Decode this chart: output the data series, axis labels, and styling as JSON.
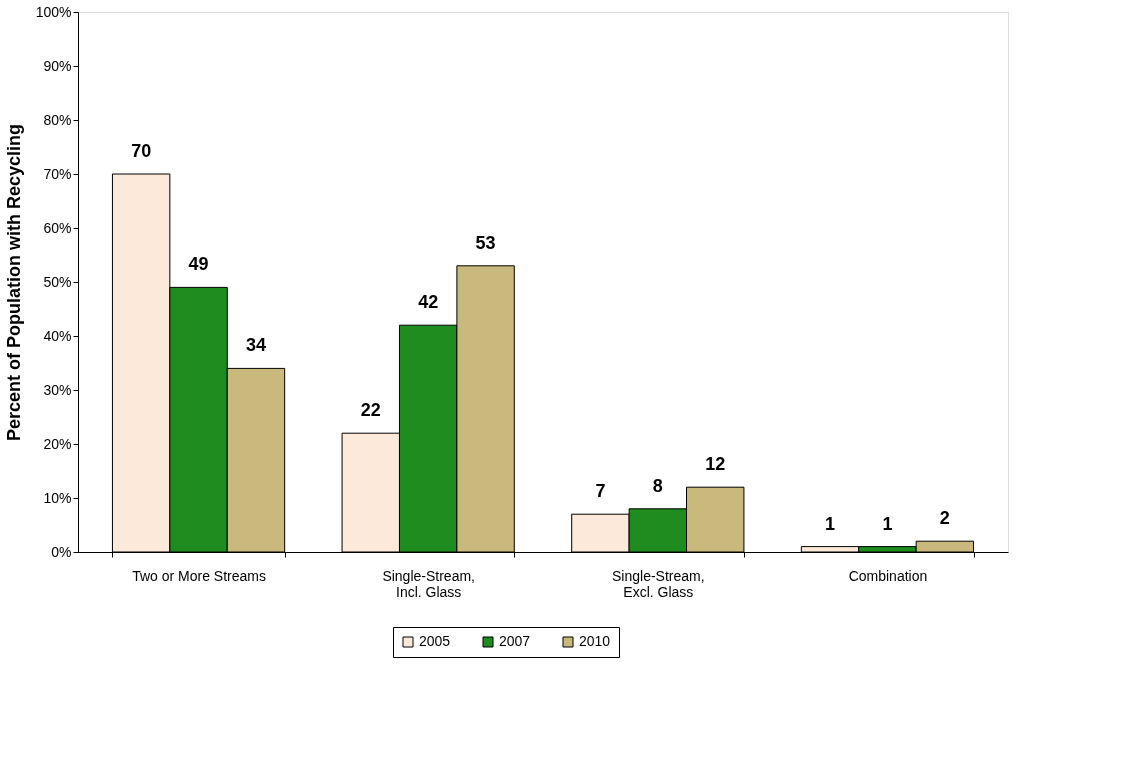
{
  "chart_data": {
    "type": "bar",
    "ylabel": "Percent of Population with Recycling",
    "categories": [
      "Two or More Streams",
      "Single-Stream,\nIncl. Glass",
      "Single-Stream,\nExcl. Glass",
      "Combination"
    ],
    "series": [
      {
        "name": "2005",
        "color": "#fde9d9",
        "values": [
          70,
          22,
          7,
          1
        ]
      },
      {
        "name": "2007",
        "color": "#1e8c1e",
        "values": [
          49,
          42,
          8,
          1
        ]
      },
      {
        "name": "2010",
        "color": "#c9b97c",
        "values": [
          34,
          53,
          12,
          2
        ]
      }
    ],
    "ylim": [
      0,
      100
    ],
    "yticks": [
      {
        "value": 0,
        "label": "0%"
      },
      {
        "value": 10,
        "label": "10%"
      },
      {
        "value": 20,
        "label": "20%"
      },
      {
        "value": 30,
        "label": "30%"
      },
      {
        "value": 40,
        "label": "40%"
      },
      {
        "value": 50,
        "label": "50%"
      },
      {
        "value": 60,
        "label": "60%"
      },
      {
        "value": 70,
        "label": "70%"
      },
      {
        "value": 80,
        "label": "80%"
      },
      {
        "value": 90,
        "label": "90%"
      },
      {
        "value": 100,
        "label": "100%"
      }
    ],
    "data_labels": true,
    "grid": false,
    "legend": "bottom"
  }
}
